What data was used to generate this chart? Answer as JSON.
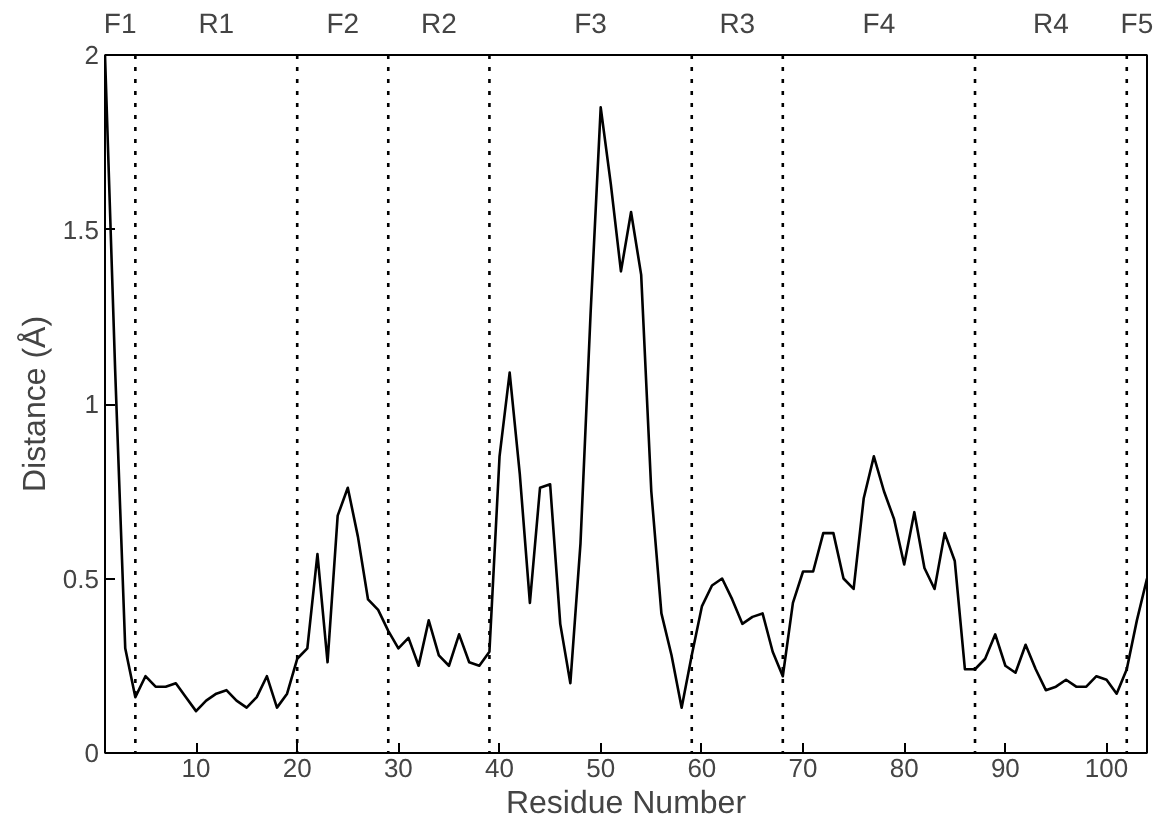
{
  "chart_data": {
    "type": "line",
    "xlabel": "Residue Number",
    "ylabel": "Distance (Å)",
    "x": [
      1,
      2,
      3,
      4,
      5,
      6,
      7,
      8,
      9,
      10,
      11,
      12,
      13,
      14,
      15,
      16,
      17,
      18,
      19,
      20,
      21,
      22,
      23,
      24,
      25,
      26,
      27,
      28,
      29,
      30,
      31,
      32,
      33,
      34,
      35,
      36,
      37,
      38,
      39,
      40,
      41,
      42,
      43,
      44,
      45,
      46,
      47,
      48,
      49,
      50,
      51,
      52,
      53,
      54,
      55,
      56,
      57,
      58,
      59,
      60,
      61,
      62,
      63,
      64,
      65,
      66,
      67,
      68,
      69,
      70,
      71,
      72,
      73,
      74,
      75,
      76,
      77,
      78,
      79,
      80,
      81,
      82,
      83,
      84,
      85,
      86,
      87,
      88,
      89,
      90,
      91,
      92,
      93,
      94,
      95,
      96,
      97,
      98,
      99,
      100,
      101,
      102,
      103,
      104
    ],
    "series": [
      {
        "color": "#000000",
        "values": [
          2.0,
          1.1,
          0.3,
          0.16,
          0.22,
          0.19,
          0.19,
          0.2,
          0.16,
          0.12,
          0.15,
          0.17,
          0.18,
          0.15,
          0.13,
          0.16,
          0.22,
          0.13,
          0.17,
          0.27,
          0.3,
          0.57,
          0.26,
          0.68,
          0.76,
          0.62,
          0.44,
          0.41,
          0.35,
          0.3,
          0.33,
          0.25,
          0.38,
          0.28,
          0.25,
          0.34,
          0.26,
          0.25,
          0.29,
          0.85,
          1.09,
          0.8,
          0.43,
          0.76,
          0.77,
          0.37,
          0.2,
          0.6,
          1.26,
          1.85,
          1.63,
          1.38,
          1.55,
          1.37,
          0.75,
          0.4,
          0.28,
          0.13,
          0.28,
          0.42,
          0.48,
          0.5,
          0.44,
          0.37,
          0.39,
          0.4,
          0.29,
          0.22,
          0.43,
          0.52,
          0.52,
          0.63,
          0.63,
          0.5,
          0.47,
          0.73,
          0.85,
          0.75,
          0.67,
          0.54,
          0.69,
          0.53,
          0.47,
          0.63,
          0.55,
          0.24,
          0.24,
          0.27,
          0.34,
          0.25,
          0.23,
          0.31,
          0.24,
          0.18,
          0.19,
          0.21,
          0.19,
          0.19,
          0.22,
          0.21,
          0.17,
          0.24,
          0.38,
          0.5
        ]
      }
    ],
    "xlim": [
      1,
      104
    ],
    "ylim": [
      0,
      2
    ],
    "xticks": [
      10,
      20,
      30,
      40,
      50,
      60,
      70,
      80,
      90,
      100
    ],
    "yticks": [
      0,
      {
        "value": 0.5,
        "label": "0.5"
      },
      1,
      {
        "value": 1.5,
        "label": "1.5"
      },
      2
    ],
    "grid": false,
    "line_style": "solid",
    "marker": "none",
    "ref_lines": [
      {
        "axis": "x",
        "value": 4,
        "line_style": "dotted",
        "color": "#000000"
      },
      {
        "axis": "x",
        "value": 20,
        "line_style": "dotted",
        "color": "#000000"
      },
      {
        "axis": "x",
        "value": 29,
        "line_style": "dotted",
        "color": "#000000"
      },
      {
        "axis": "x",
        "value": 39,
        "line_style": "dotted",
        "color": "#000000"
      },
      {
        "axis": "x",
        "value": 59,
        "line_style": "dotted",
        "color": "#000000"
      },
      {
        "axis": "x",
        "value": 68,
        "line_style": "dotted",
        "color": "#000000"
      },
      {
        "axis": "x",
        "value": 87,
        "line_style": "dotted",
        "color": "#000000"
      },
      {
        "axis": "x",
        "value": 102,
        "line_style": "dotted",
        "color": "#000000"
      }
    ],
    "annotations": [
      "F1",
      "R1",
      "F2",
      "R2",
      "F3",
      "R3",
      "F4",
      "R4",
      "F5"
    ]
  }
}
